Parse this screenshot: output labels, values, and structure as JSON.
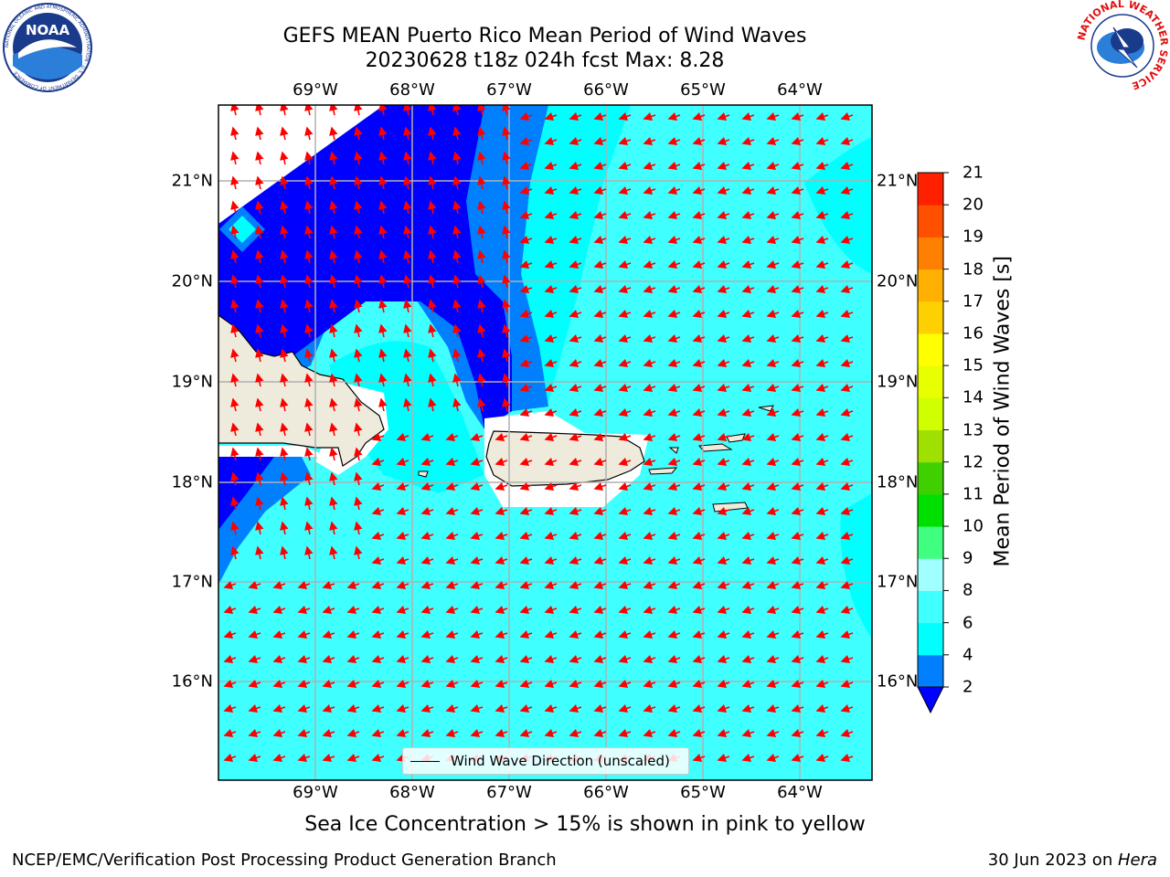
{
  "title": {
    "line1": "GEFS MEAN Puerto Rico Mean Period of Wind Waves",
    "line2": "20230628 t18z 024h fcst   Max: 8.28"
  },
  "logos": {
    "left": "NOAA",
    "left_ring": "NATIONAL OCEANIC AND ATMOSPHERIC ADMINISTRATION · U.S. DEPARTMENT OF COMMERCE",
    "right_ring": "NATIONAL WEATHER SERVICE"
  },
  "map": {
    "lon_ticks": [
      "69°W",
      "68°W",
      "67°W",
      "66°W",
      "65°W",
      "64°W"
    ],
    "lat_ticks": [
      "21°N",
      "20°N",
      "19°N",
      "18°N",
      "17°N",
      "16°N"
    ],
    "legend": "Wind Wave Direction (unscaled)",
    "arrow_color": "#ff0000"
  },
  "colorbar": {
    "label": "Mean Period of Wind Waves [s]",
    "ticks": [
      "2",
      "4",
      "6",
      "8",
      "9",
      "10",
      "11",
      "12",
      "13",
      "14",
      "15",
      "16",
      "17",
      "18",
      "19",
      "20",
      "21"
    ],
    "colors": [
      "#0000ff",
      "#0080ff",
      "#00ffff",
      "#40ffff",
      "#a0ffff",
      "#40ff80",
      "#00e000",
      "#40d000",
      "#a0e000",
      "#d0ff00",
      "#e8ff00",
      "#ffff00",
      "#ffd000",
      "#ffb000",
      "#ff8000",
      "#ff5000",
      "#ff2000",
      "#ff0000"
    ]
  },
  "ice_note": "Sea Ice Concentration > 15% is shown in pink to yellow",
  "footer": {
    "left": "NCEP/EMC/Verification Post Processing Product Generation Branch",
    "right_prefix": "30 Jun 2023 on ",
    "right_host": "Hera"
  }
}
